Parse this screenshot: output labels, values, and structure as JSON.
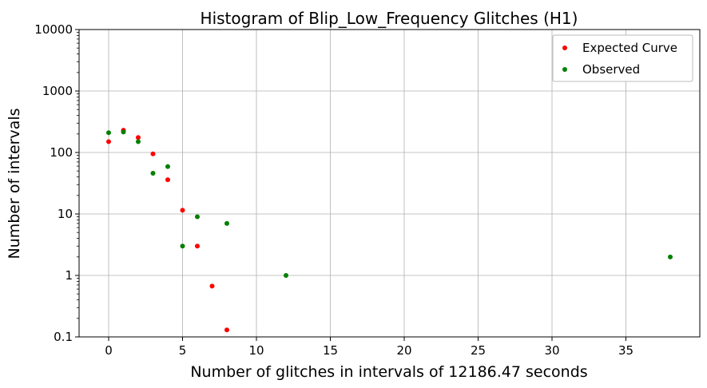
{
  "chart_data": {
    "type": "scatter",
    "title": "Histogram of Blip_Low_Frequency Glitches (H1)",
    "xlabel": "Number of glitches in intervals of 12186.47 seconds",
    "ylabel": "Number of intervals",
    "xlim": [
      -2,
      40
    ],
    "ylim": [
      0.1,
      10000
    ],
    "yscale": "log",
    "grid": true,
    "legend_position": "top-right",
    "x_ticks": [
      0,
      5,
      10,
      15,
      20,
      25,
      30,
      35
    ],
    "x_tick_labels": [
      "0",
      "5",
      "10",
      "15",
      "20",
      "25",
      "30",
      "35"
    ],
    "y_ticks": [
      0.1,
      1,
      10,
      100,
      1000,
      10000
    ],
    "y_tick_labels": [
      "0.1",
      "1",
      "10",
      "100",
      "1000",
      "10000"
    ],
    "series": [
      {
        "name": "Expected Curve",
        "color": "#ff0000",
        "x": [
          0,
          1,
          2,
          3,
          4,
          5,
          6,
          7,
          8
        ],
        "y": [
          150,
          230,
          175,
          95,
          36,
          11.5,
          3,
          0.67,
          0.13
        ]
      },
      {
        "name": "Observed",
        "color": "#008000",
        "x": [
          0,
          1,
          2,
          3,
          4,
          5,
          6,
          8,
          12,
          38
        ],
        "y": [
          210,
          215,
          150,
          46,
          59,
          3,
          9,
          7,
          1,
          2
        ]
      }
    ]
  }
}
